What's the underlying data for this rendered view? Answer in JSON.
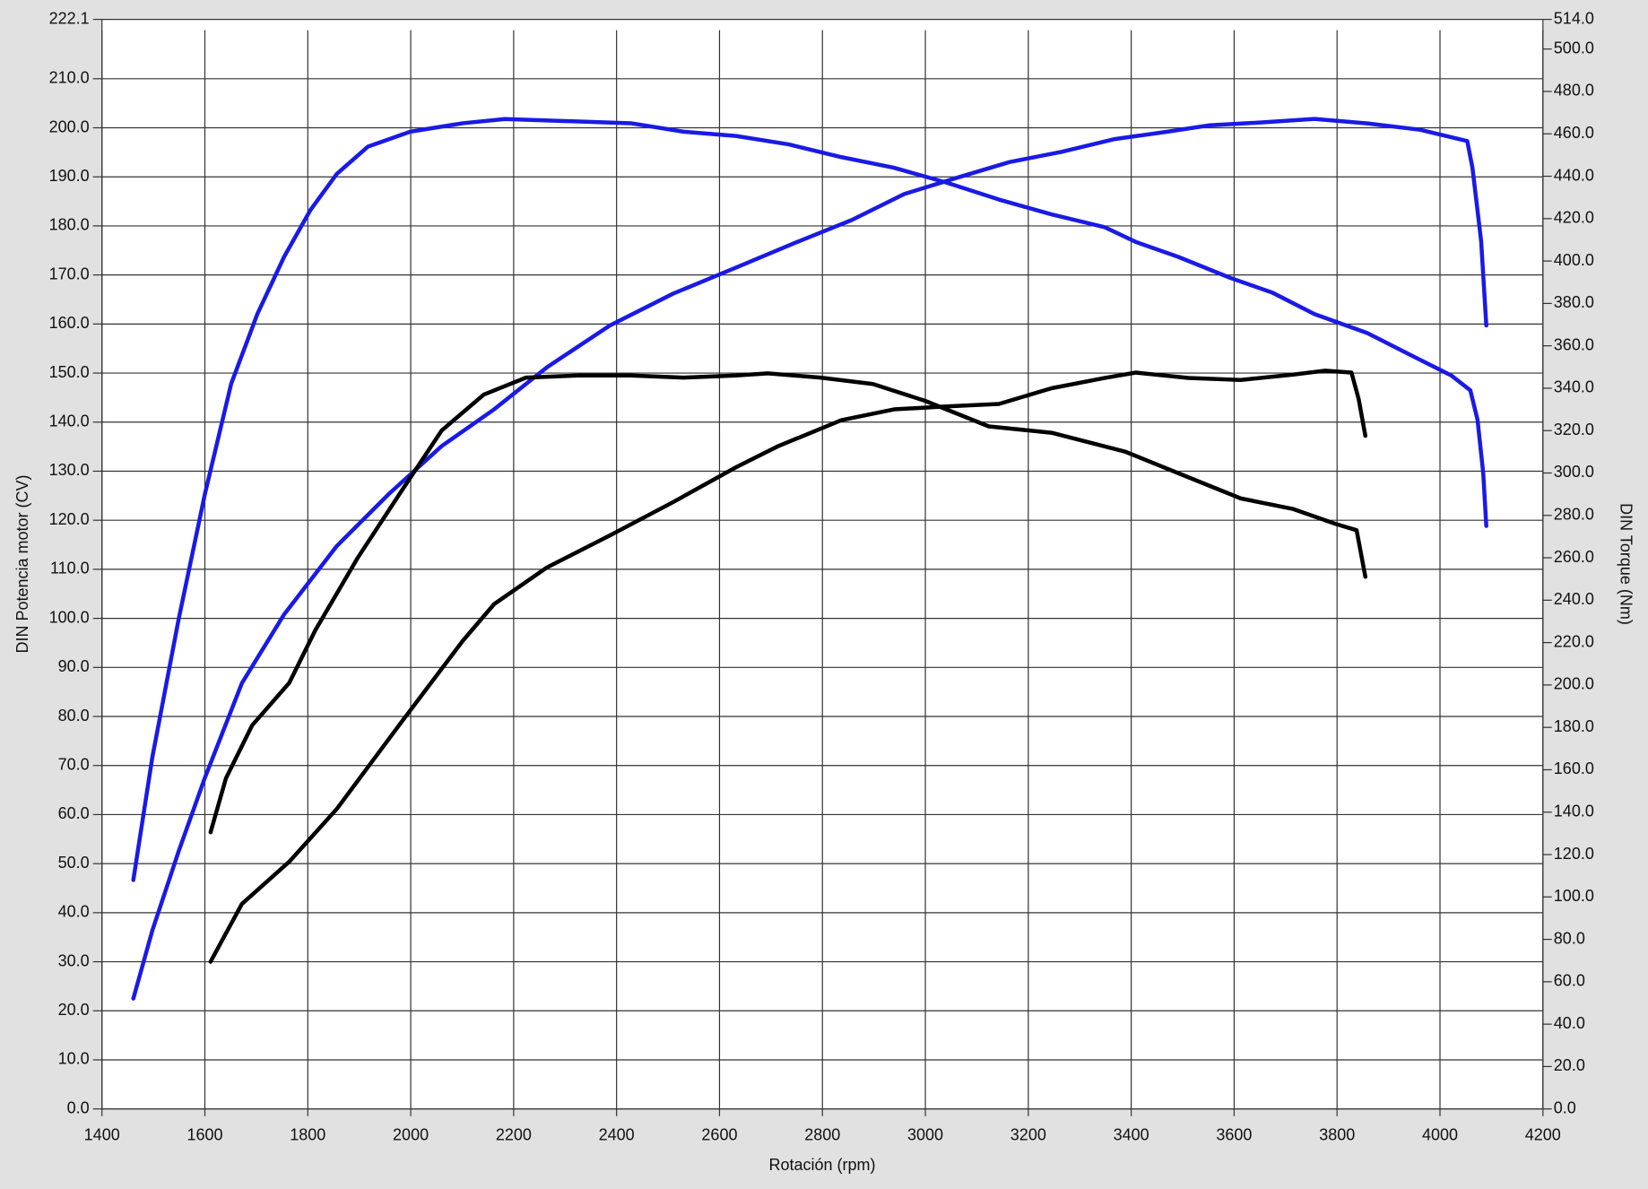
{
  "chart_data": {
    "type": "line",
    "xlabel": "Rotación (rpm)",
    "ylabel": "DIN Potencia motor (CV)",
    "y2label": "DIN Torque (Nm)",
    "grid": true,
    "xlim": [
      1400,
      4200
    ],
    "xticks": [
      1400,
      1600,
      1800,
      2000,
      2200,
      2400,
      2600,
      2800,
      3000,
      3200,
      3400,
      3600,
      3800,
      4000,
      4200
    ],
    "ylim": [
      0,
      222.1
    ],
    "yticks": [
      {
        "value": 0,
        "label": "0.0"
      },
      {
        "value": 10,
        "label": "10.0"
      },
      {
        "value": 20,
        "label": "20.0"
      },
      {
        "value": 30,
        "label": "30.0"
      },
      {
        "value": 40,
        "label": "40.0"
      },
      {
        "value": 50,
        "label": "50.0"
      },
      {
        "value": 60,
        "label": "60.0"
      },
      {
        "value": 70,
        "label": "70.0"
      },
      {
        "value": 80,
        "label": "80.0"
      },
      {
        "value": 90,
        "label": "90.0"
      },
      {
        "value": 100,
        "label": "100.0"
      },
      {
        "value": 110,
        "label": "110.0"
      },
      {
        "value": 120,
        "label": "120.0"
      },
      {
        "value": 130,
        "label": "130.0"
      },
      {
        "value": 140,
        "label": "140.0"
      },
      {
        "value": 150,
        "label": "150.0"
      },
      {
        "value": 160,
        "label": "160.0"
      },
      {
        "value": 170,
        "label": "170.0"
      },
      {
        "value": 180,
        "label": "180.0"
      },
      {
        "value": 190,
        "label": "190.0"
      },
      {
        "value": 200,
        "label": "200.0"
      },
      {
        "value": 210,
        "label": "210.0"
      },
      222.1
    ],
    "y2lim": [
      0,
      514
    ],
    "y2ticks": [
      {
        "value": 0,
        "label": "0.0"
      },
      {
        "value": 20,
        "label": "20.0"
      },
      {
        "value": 40,
        "label": "40.0"
      },
      {
        "value": 60,
        "label": "60.0"
      },
      {
        "value": 80,
        "label": "80.0"
      },
      {
        "value": 100,
        "label": "100.0"
      },
      {
        "value": 120,
        "label": "120.0"
      },
      {
        "value": 140,
        "label": "140.0"
      },
      {
        "value": 160,
        "label": "160.0"
      },
      {
        "value": 180,
        "label": "180.0"
      },
      {
        "value": 200,
        "label": "200.0"
      },
      {
        "value": 220,
        "label": "220.0"
      },
      {
        "value": 240,
        "label": "240.0"
      },
      {
        "value": 260,
        "label": "260.0"
      },
      {
        "value": 280,
        "label": "280.0"
      },
      {
        "value": 300,
        "label": "300.0"
      },
      {
        "value": 320,
        "label": "320.0"
      },
      {
        "value": 340,
        "label": "340.0"
      },
      {
        "value": 360,
        "label": "360.0"
      },
      {
        "value": 380,
        "label": "380.0"
      },
      {
        "value": 400,
        "label": "400.0"
      },
      {
        "value": 420,
        "label": "420.0"
      },
      {
        "value": 440,
        "label": "440.0"
      },
      {
        "value": 460,
        "label": "460.0"
      },
      {
        "value": 480,
        "label": "480.0"
      },
      {
        "value": 500,
        "label": "500.0"
      },
      {
        "value": 514,
        "label": "514.0"
      }
    ],
    "series": [
      {
        "color": "#1a1ae6",
        "axis": "y",
        "x": [
          1461,
          1498,
          1549,
          1600,
          1672,
          1754,
          1856,
          1958,
          2060,
          2162,
          2265,
          2387,
          2510,
          2632,
          2755,
          2857,
          2959,
          3061,
          3163,
          3265,
          3368,
          3470,
          3552,
          3654,
          3756,
          3859,
          3961,
          4053,
          4063,
          4080,
          4090
        ],
        "values": [
          22.5,
          36.4,
          52.5,
          67.5,
          86.8,
          100.8,
          114.7,
          125.4,
          135.1,
          142.6,
          151.2,
          159.7,
          166.2,
          171.5,
          176.9,
          181.2,
          186.5,
          189.8,
          193,
          195.1,
          197.7,
          199.2,
          200.5,
          201.1,
          201.8,
          200.9,
          199.6,
          197.3,
          191.9,
          176.9,
          159.7
        ]
      },
      {
        "color": "#1a1ae6",
        "axis": "y2",
        "x": [
          1461,
          1498,
          1549,
          1600,
          1651,
          1702,
          1754,
          1805,
          1856,
          1917,
          1999,
          2101,
          2183,
          2305,
          2428,
          2530,
          2632,
          2735,
          2837,
          2939,
          3041,
          3143,
          3245,
          3348,
          3409,
          3491,
          3593,
          3675,
          3756,
          3859,
          3940,
          4022,
          4059,
          4073,
          4084,
          4090
        ],
        "values": [
          108,
          166,
          231,
          290,
          342,
          375,
          402,
          424,
          441,
          454,
          461,
          465,
          467,
          466,
          465,
          461,
          459,
          455,
          449,
          444,
          437,
          429,
          422,
          416,
          409,
          402,
          392,
          385,
          375,
          366,
          356,
          346,
          339,
          325,
          300,
          275
        ]
      },
      {
        "color": "#000000",
        "axis": "y",
        "x": [
          1611,
          1672,
          1764,
          1856,
          1978,
          2101,
          2162,
          2265,
          2387,
          2510,
          2632,
          2714,
          2837,
          2939,
          3041,
          3143,
          3245,
          3348,
          3409,
          3511,
          3613,
          3715,
          3777,
          3828,
          3842,
          3855
        ],
        "values": [
          30.0,
          41.8,
          50.4,
          61.1,
          78.3,
          95.4,
          102.9,
          110.4,
          116.9,
          123.7,
          130.8,
          135.1,
          140.4,
          142.6,
          143.2,
          143.7,
          146.9,
          149,
          150.1,
          149,
          148.6,
          149.7,
          150.5,
          150.1,
          144.7,
          137.2
        ]
      },
      {
        "color": "#000000",
        "axis": "y2",
        "x": [
          1611,
          1641,
          1692,
          1764,
          1815,
          1897,
          1978,
          2060,
          2142,
          2224,
          2326,
          2428,
          2530,
          2632,
          2694,
          2796,
          2898,
          3000,
          3123,
          3245,
          3389,
          3511,
          3613,
          3715,
          3797,
          3838,
          3855
        ],
        "values": [
          130.5,
          156,
          181,
          201,
          226,
          260,
          290,
          320,
          337,
          345,
          346,
          346,
          345,
          346,
          347,
          345,
          342,
          334,
          322,
          319,
          310,
          298,
          288,
          283,
          276,
          273,
          251
        ]
      }
    ]
  }
}
